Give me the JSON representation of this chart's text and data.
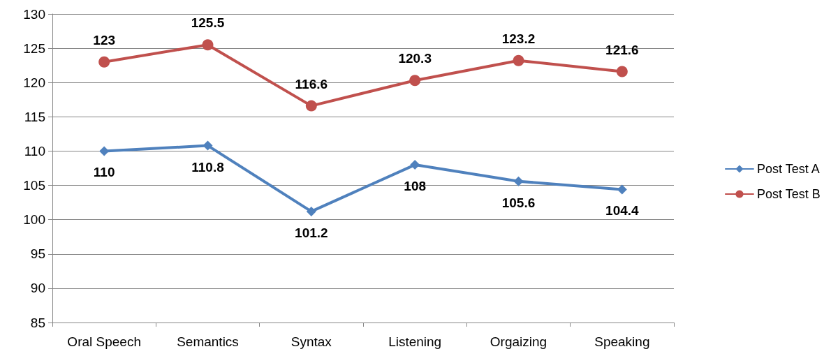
{
  "chart_data": {
    "type": "line",
    "categories": [
      "Oral Speech",
      "Semantics",
      "Syntax",
      "Listening",
      "Orgaizing",
      "Speaking"
    ],
    "series": [
      {
        "name": "Post Test A",
        "color": "#4f81bd",
        "marker": "diamond",
        "values": [
          110,
          110.8,
          101.2,
          108,
          105.6,
          104.4
        ]
      },
      {
        "name": "Post Test B",
        "color": "#c0504d",
        "marker": "circle",
        "values": [
          123,
          125.5,
          116.6,
          120.3,
          123.2,
          121.6
        ]
      }
    ],
    "ylim": [
      85,
      130
    ],
    "yticks": [
      85,
      90,
      95,
      100,
      105,
      110,
      115,
      120,
      125,
      130
    ],
    "grid": "y",
    "legend": "right",
    "data_labels": true,
    "line_style": "solid"
  }
}
